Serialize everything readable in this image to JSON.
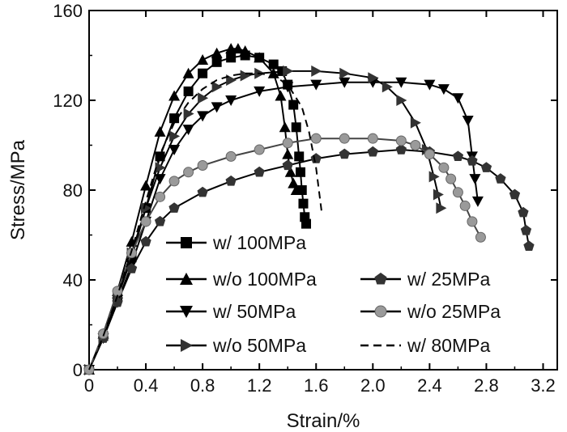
{
  "chart_data": {
    "type": "line",
    "title": "",
    "xlabel": "Strain/%",
    "ylabel": "Stress/MPa",
    "xlim": [
      0,
      3.3
    ],
    "ylim": [
      0,
      160
    ],
    "xticks": [
      0,
      0.4,
      0.8,
      1.2,
      1.6,
      2.0,
      2.4,
      2.8,
      3.2
    ],
    "xtick_labels": [
      "0",
      "0.4",
      "0.8",
      "1.2",
      "1.6",
      "2.0",
      "2.4",
      "2.8",
      "3.2"
    ],
    "yticks": [
      0,
      40,
      80,
      120,
      160
    ],
    "ytick_labels": [
      "0",
      "40",
      "80",
      "120",
      "160"
    ],
    "grid": false,
    "series": [
      {
        "name": "w/ 100MPa",
        "marker": "square",
        "x": [
          0,
          0.1,
          0.2,
          0.3,
          0.4,
          0.5,
          0.6,
          0.7,
          0.8,
          0.9,
          1.0,
          1.1,
          1.2,
          1.3,
          1.36,
          1.4,
          1.44,
          1.46,
          1.48,
          1.49,
          1.5,
          1.51,
          1.52,
          1.53
        ],
        "y": [
          0,
          15,
          32,
          50,
          72,
          95,
          112,
          124,
          132,
          137,
          139,
          140,
          139,
          136,
          133,
          127,
          118,
          108,
          95,
          88,
          80,
          74,
          68,
          65
        ]
      },
      {
        "name": "w/o 100MPa",
        "marker": "triangle-up",
        "x": [
          0,
          0.1,
          0.2,
          0.3,
          0.4,
          0.5,
          0.6,
          0.7,
          0.8,
          0.9,
          1.0,
          1.05,
          1.1,
          1.2,
          1.3,
          1.35,
          1.38,
          1.4,
          1.42,
          1.44,
          1.46
        ],
        "y": [
          0,
          16,
          35,
          57,
          82,
          106,
          122,
          132,
          138,
          141,
          143,
          143,
          142,
          139,
          132,
          122,
          108,
          96,
          88,
          83,
          80
        ]
      },
      {
        "name": "w/ 50MPa",
        "marker": "triangle-down",
        "x": [
          0,
          0.1,
          0.2,
          0.3,
          0.4,
          0.5,
          0.6,
          0.7,
          0.8,
          0.9,
          1.0,
          1.2,
          1.4,
          1.6,
          1.8,
          2.0,
          2.2,
          2.4,
          2.5,
          2.6,
          2.67,
          2.7,
          2.72,
          2.74
        ],
        "y": [
          0,
          14,
          30,
          47,
          66,
          85,
          98,
          107,
          113,
          117,
          120,
          124,
          126,
          127,
          128,
          128,
          128,
          127,
          125,
          121,
          111,
          95,
          85,
          75
        ]
      },
      {
        "name": "w/o 50MPa",
        "marker": "triangle-right",
        "x": [
          0,
          0.1,
          0.2,
          0.3,
          0.4,
          0.5,
          0.6,
          0.7,
          0.8,
          0.9,
          1.0,
          1.1,
          1.2,
          1.4,
          1.6,
          1.8,
          2.0,
          2.1,
          2.2,
          2.3,
          2.38,
          2.43,
          2.46,
          2.48
        ],
        "y": [
          0,
          14,
          32,
          52,
          72,
          90,
          104,
          114,
          121,
          126,
          129,
          131,
          132,
          133,
          133,
          132,
          130,
          126,
          120,
          110,
          98,
          86,
          78,
          72
        ]
      },
      {
        "name": "w/ 25MPa",
        "marker": "pentagon",
        "x": [
          0,
          0.1,
          0.2,
          0.3,
          0.4,
          0.5,
          0.6,
          0.8,
          1.0,
          1.2,
          1.4,
          1.6,
          1.8,
          2.0,
          2.2,
          2.4,
          2.6,
          2.7,
          2.8,
          2.9,
          3.0,
          3.06,
          3.08,
          3.1
        ],
        "y": [
          0,
          14,
          30,
          45,
          57,
          66,
          72,
          79,
          84,
          88,
          91,
          94,
          96,
          97,
          98,
          97,
          95,
          93,
          90,
          85,
          78,
          70,
          62,
          55
        ]
      },
      {
        "name": "w/o 25MPa",
        "marker": "circle",
        "x": [
          0,
          0.1,
          0.2,
          0.3,
          0.4,
          0.5,
          0.6,
          0.7,
          0.8,
          1.0,
          1.2,
          1.4,
          1.6,
          1.8,
          2.0,
          2.2,
          2.3,
          2.4,
          2.5,
          2.55,
          2.6,
          2.65,
          2.7,
          2.76
        ],
        "y": [
          0,
          16,
          35,
          52,
          66,
          77,
          84,
          88,
          91,
          95,
          98,
          101,
          103,
          103,
          103,
          102,
          100,
          96,
          90,
          85,
          79,
          73,
          66,
          59
        ]
      },
      {
        "name": "w/ 80MPa",
        "marker": "dashed",
        "x": [
          0,
          0.1,
          0.2,
          0.3,
          0.4,
          0.5,
          0.6,
          0.7,
          0.8,
          0.9,
          1.0,
          1.1,
          1.2,
          1.3,
          1.4,
          1.5,
          1.55,
          1.6,
          1.62,
          1.64
        ],
        "y": [
          0,
          15,
          33,
          53,
          75,
          96,
          110,
          119,
          125,
          129,
          131,
          132,
          132,
          131,
          127,
          117,
          106,
          90,
          80,
          70
        ]
      }
    ],
    "legend": [
      "w/ 100MPa",
      "w/o 100MPa",
      "w/ 50MPa",
      "w/o 50MPa",
      "w/ 25MPa",
      "w/o 25MPa",
      "w/ 80MPa"
    ]
  }
}
